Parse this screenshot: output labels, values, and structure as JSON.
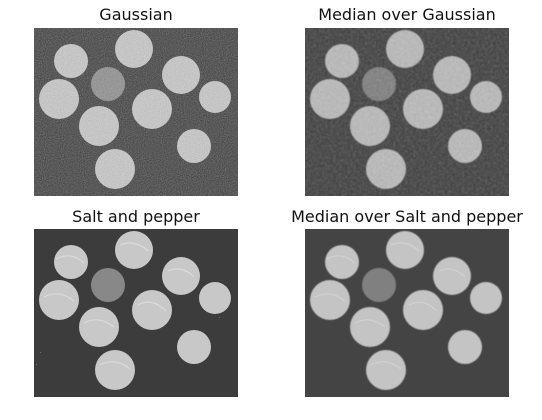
{
  "panels": [
    {
      "title": "Gaussian"
    },
    {
      "title": "Median over Gaussian"
    },
    {
      "title": "Salt and pepper"
    },
    {
      "title": "Median over Salt and pepper"
    }
  ],
  "colors": {
    "background": "#ffffff",
    "title_text": "#111111",
    "image_bg_gaussian": "#3a3a3a",
    "image_bg_median_gaussian": "#404040",
    "image_bg_salt_pepper": "#3c3c3c",
    "image_bg_median_salt_pepper": "#444444",
    "coin_light": "#e2e2e2",
    "coin_dark_penny": "#8a8a8a"
  }
}
